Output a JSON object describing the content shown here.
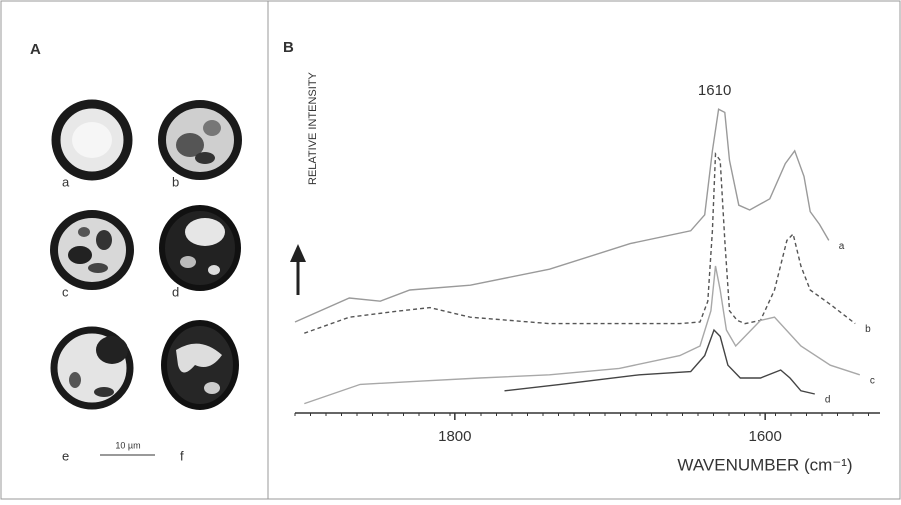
{
  "panel_a": {
    "label": "A",
    "images": [
      "a",
      "b",
      "c",
      "d",
      "e",
      "f"
    ],
    "scale_bar": "10 µm"
  },
  "chart_data": {
    "type": "line",
    "panel_label": "B",
    "x_label": "WAVENUMBER (cm⁻¹)",
    "y_label": "RELATIVE INTENSITY",
    "annotation": "1610",
    "xlim": [
      1903,
      1526
    ],
    "xticks": [
      1800,
      1600
    ],
    "ylim": [
      0,
      100
    ],
    "series": [
      {
        "name": "a",
        "color": "#9a9a9a",
        "dash": "none",
        "x": [
          1903,
          1868,
          1848,
          1829,
          1790,
          1739,
          1687,
          1648,
          1639,
          1634,
          1630,
          1626,
          1623,
          1617,
          1610,
          1597,
          1587,
          1581,
          1575,
          1571,
          1565,
          1559
        ],
        "values": [
          27.5,
          35,
          34,
          37.5,
          39,
          44,
          52,
          56,
          61,
          81,
          94,
          93,
          78,
          64,
          62.5,
          66,
          77,
          81,
          73,
          62,
          58,
          53
        ]
      },
      {
        "name": "b",
        "color": "#555555",
        "dash": "4 3",
        "x": [
          1897,
          1868,
          1835,
          1816,
          1790,
          1739,
          1694,
          1655,
          1642,
          1637,
          1634,
          1632,
          1629,
          1626,
          1623,
          1618,
          1613,
          1603,
          1594,
          1586,
          1582,
          1577,
          1571,
          1558,
          1542
        ],
        "values": [
          24,
          29,
          31,
          32,
          29,
          27,
          27,
          27,
          27.5,
          34,
          56,
          80,
          78,
          53,
          31,
          28,
          27,
          28,
          37.5,
          53,
          55,
          45,
          37.5,
          33,
          27
        ]
      },
      {
        "name": "c",
        "color": "#a8a8a8",
        "dash": "none",
        "x": [
          1897,
          1861,
          1823,
          1784,
          1739,
          1694,
          1655,
          1642,
          1635,
          1632,
          1629,
          1625,
          1619,
          1603,
          1594,
          1577,
          1558,
          1539
        ],
        "values": [
          2,
          8,
          9,
          10,
          11,
          13,
          17,
          20,
          31,
          45,
          37.5,
          25,
          20,
          28,
          29,
          20,
          14,
          11
        ]
      },
      {
        "name": "d",
        "color": "#444444",
        "dash": "none",
        "x": [
          1768,
          1732,
          1681,
          1648,
          1639,
          1633,
          1629,
          1624,
          1616,
          1603,
          1590,
          1584,
          1577,
          1568
        ],
        "values": [
          6,
          8,
          11,
          12,
          17,
          25,
          23,
          14,
          10,
          10,
          12.5,
          10,
          6,
          5
        ]
      }
    ]
  }
}
